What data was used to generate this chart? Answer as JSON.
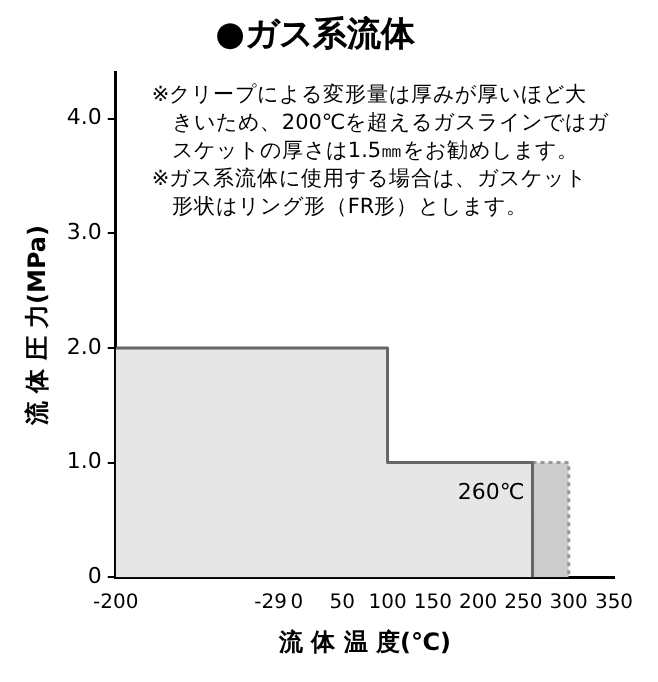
{
  "chart_data": {
    "type": "area",
    "title": "●ガス系流体",
    "xlabel": "流 体 温 度(℃)",
    "ylabel": "流 体 圧 力(MPa)",
    "series": [
      {
        "x": [
          -200,
          100,
          100,
          260,
          260
        ],
        "values": [
          2.0,
          2.0,
          1.0,
          1.0,
          0
        ],
        "color": "#666666"
      },
      {
        "x": [
          260,
          300,
          300
        ],
        "values": [
          1.0,
          1.0,
          0
        ],
        "color": "#999999",
        "line_style": "dotted"
      }
    ],
    "xlim": [
      -200,
      350
    ],
    "xticks": [
      -200,
      -29,
      0,
      50,
      100,
      150,
      200,
      250,
      300,
      350
    ],
    "ylim": [
      0,
      4.4
    ],
    "yticks": [
      0,
      {
        "value": 1,
        "label": "1.0"
      },
      {
        "value": 2,
        "label": "2.0"
      },
      {
        "value": 3,
        "label": "3.0"
      },
      {
        "value": 4,
        "label": "4.0"
      }
    ],
    "grid": false,
    "legend": false,
    "annotations": [
      "※クリープによる変形量は厚みが厚いほど大きいため、200℃を超えるガスラインではガスケットの厚さは1.5㎜をお勧めします。",
      "※ガス系流体に使用する場合は、ガスケット形状はリング形（FR形）とします。",
      {
        "text": "260℃",
        "x": 260,
        "y": 1.0
      }
    ]
  }
}
